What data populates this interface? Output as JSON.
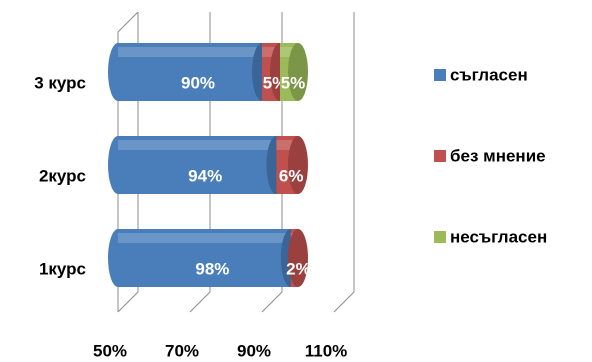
{
  "chart_data": {
    "type": "bar3d-horizontal-stacked",
    "categories": [
      "1курс",
      "2курс",
      "3 курс"
    ],
    "series": [
      {
        "name": "съгласен",
        "color": "#4a7ebb",
        "values": [
          98,
          94,
          90
        ],
        "value_labels": [
          "98%",
          "94%",
          "90%"
        ]
      },
      {
        "name": "без мнение",
        "color": "#c0504d",
        "values": [
          2,
          6,
          5
        ],
        "value_labels": [
          "2%",
          "6%",
          "5%"
        ]
      },
      {
        "name": "несъгласен",
        "color": "#9bbb59",
        "values": [
          null,
          null,
          5
        ],
        "value_labels": [
          null,
          null,
          "5%"
        ]
      }
    ],
    "xlim": [
      50,
      110
    ],
    "xticks": [
      {
        "value": 50,
        "label": "50%"
      },
      {
        "value": 70,
        "label": "70%"
      },
      {
        "value": 90,
        "label": "90%"
      },
      {
        "value": 110,
        "label": "110%"
      }
    ],
    "grid": true,
    "legend": "right"
  }
}
